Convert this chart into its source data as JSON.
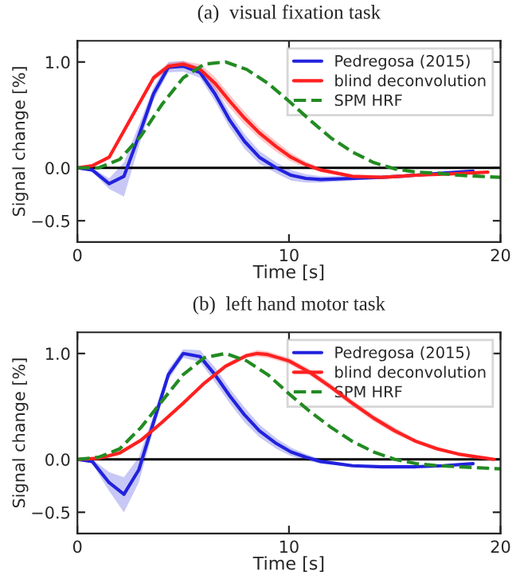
{
  "chart_data": [
    {
      "type": "line",
      "title": "(a)  visual fixation task",
      "xlabel": "Time [s]",
      "ylabel": "Signal change [%]",
      "xlim": [
        0,
        20
      ],
      "ylim": [
        -0.7,
        1.2
      ],
      "xticks": [
        0,
        10,
        20
      ],
      "yticks": [
        {
          "value": -0.5,
          "label": "−0.5"
        },
        {
          "value": 0,
          "label": "0.0"
        },
        {
          "value": 1,
          "label": "1.0"
        }
      ],
      "grid": false,
      "legend": "top right",
      "ref_lines": [
        {
          "axis": "y",
          "value": 0,
          "color": "#000000"
        }
      ],
      "series": [
        {
          "name": "Pedregosa (2015)",
          "color": "#2222dd",
          "line_style": "solid",
          "x": [
            0,
            0.7,
            1.5,
            2.2,
            2.9,
            3.6,
            4.3,
            5.0,
            5.8,
            6.5,
            7.2,
            7.9,
            8.6,
            9.4,
            10.1,
            10.8,
            11.5,
            13,
            14.4,
            16,
            17.3,
            18.7
          ],
          "values": [
            0,
            -0.02,
            -0.15,
            -0.08,
            0.3,
            0.7,
            0.95,
            0.96,
            0.9,
            0.7,
            0.45,
            0.25,
            0.1,
            0.0,
            -0.07,
            -0.1,
            -0.11,
            -0.1,
            -0.09,
            -0.07,
            -0.05,
            -0.03
          ],
          "lower": [
            0,
            -0.04,
            -0.2,
            -0.27,
            0.2,
            0.64,
            0.9,
            0.91,
            0.85,
            0.63,
            0.38,
            0.18,
            0.04,
            -0.05,
            -0.12,
            -0.14,
            -0.14,
            -0.12,
            -0.1,
            -0.08,
            -0.06,
            -0.04
          ],
          "upper": [
            0,
            0.0,
            -0.1,
            0.05,
            0.4,
            0.76,
            1.0,
            1.01,
            0.95,
            0.77,
            0.52,
            0.32,
            0.16,
            0.05,
            -0.02,
            -0.06,
            -0.08,
            -0.08,
            -0.08,
            -0.06,
            -0.04,
            -0.02
          ]
        },
        {
          "name": "blind deconvolution",
          "color": "#ff2020",
          "line_style": "solid",
          "x": [
            0,
            0.7,
            1.5,
            2.2,
            2.9,
            3.6,
            4.3,
            5.0,
            5.8,
            6.5,
            7.2,
            7.9,
            8.6,
            9.4,
            10.1,
            10.8,
            11.5,
            13,
            14.4,
            16,
            17.3,
            19.4
          ],
          "values": [
            0,
            0.02,
            0.1,
            0.35,
            0.6,
            0.85,
            0.96,
            0.98,
            0.93,
            0.8,
            0.63,
            0.47,
            0.33,
            0.2,
            0.1,
            0.03,
            -0.02,
            -0.08,
            -0.09,
            -0.07,
            -0.06,
            -0.04
          ],
          "lower": [
            0,
            0.01,
            0.08,
            0.32,
            0.57,
            0.82,
            0.93,
            0.95,
            0.88,
            0.74,
            0.57,
            0.41,
            0.28,
            0.15,
            0.06,
            0.0,
            -0.04,
            -0.09,
            -0.1,
            -0.08,
            -0.07,
            -0.05
          ],
          "upper": [
            0,
            0.03,
            0.12,
            0.38,
            0.63,
            0.88,
            0.99,
            1.01,
            0.98,
            0.86,
            0.69,
            0.53,
            0.38,
            0.25,
            0.14,
            0.06,
            0.0,
            -0.07,
            -0.08,
            -0.06,
            -0.05,
            -0.03
          ]
        },
        {
          "name": "SPM HRF",
          "color": "#228b22",
          "line_style": "dashed",
          "x": [
            0,
            1,
            2,
            3,
            4,
            5,
            6,
            7,
            8,
            9,
            10,
            11,
            12,
            13,
            14,
            15,
            16,
            17,
            18,
            19,
            20
          ],
          "values": [
            0,
            0.0,
            0.08,
            0.3,
            0.6,
            0.85,
            0.98,
            1.0,
            0.93,
            0.8,
            0.63,
            0.45,
            0.28,
            0.15,
            0.05,
            -0.01,
            -0.04,
            -0.05,
            -0.07,
            -0.08,
            -0.09
          ]
        }
      ]
    },
    {
      "type": "line",
      "title": "(b)  left hand motor task",
      "xlabel": "Time [s]",
      "ylabel": "Signal change [%]",
      "xlim": [
        0,
        20
      ],
      "ylim": [
        -0.7,
        1.2
      ],
      "xticks": [
        0,
        10,
        20
      ],
      "yticks": [
        {
          "value": -0.5,
          "label": "−0.5"
        },
        {
          "value": 0,
          "label": "0.0"
        },
        {
          "value": 1,
          "label": "1.0"
        }
      ],
      "grid": false,
      "legend": "top right",
      "ref_lines": [
        {
          "axis": "y",
          "value": 0,
          "color": "#000000"
        }
      ],
      "series": [
        {
          "name": "Pedregosa (2015)",
          "color": "#2222dd",
          "line_style": "solid",
          "x": [
            0,
            0.7,
            1.5,
            2.2,
            2.9,
            3.6,
            4.3,
            5.0,
            5.8,
            6.5,
            7.2,
            7.9,
            8.6,
            9.4,
            10.1,
            10.8,
            11.5,
            13,
            14.4,
            16,
            17.3,
            18.7
          ],
          "values": [
            0,
            -0.02,
            -0.22,
            -0.33,
            -0.1,
            0.35,
            0.8,
            1.0,
            0.97,
            0.8,
            0.6,
            0.42,
            0.27,
            0.15,
            0.07,
            0.02,
            -0.02,
            -0.06,
            -0.07,
            -0.07,
            -0.06,
            -0.04
          ],
          "lower": [
            0,
            -0.04,
            -0.3,
            -0.5,
            -0.22,
            0.28,
            0.75,
            0.96,
            0.92,
            0.73,
            0.53,
            0.35,
            0.21,
            0.1,
            0.03,
            -0.01,
            -0.04,
            -0.07,
            -0.08,
            -0.08,
            -0.07,
            -0.05
          ],
          "upper": [
            0,
            0.0,
            -0.12,
            -0.17,
            0.02,
            0.42,
            0.85,
            1.04,
            1.03,
            0.87,
            0.67,
            0.49,
            0.33,
            0.2,
            0.11,
            0.05,
            0.0,
            -0.05,
            -0.06,
            -0.06,
            -0.05,
            -0.03
          ]
        },
        {
          "name": "blind deconvolution",
          "color": "#ff2020",
          "line_style": "solid",
          "x": [
            0,
            1,
            2,
            3,
            4,
            5,
            6,
            7,
            8,
            8.5,
            9,
            10,
            11,
            12,
            13,
            14,
            15,
            16,
            17,
            18,
            19,
            19.7
          ],
          "values": [
            0,
            0.01,
            0.06,
            0.18,
            0.35,
            0.53,
            0.72,
            0.88,
            0.98,
            1.0,
            0.99,
            0.93,
            0.82,
            0.68,
            0.53,
            0.39,
            0.27,
            0.17,
            0.1,
            0.05,
            0.02,
            0.0
          ],
          "lower": [
            0,
            0.0,
            0.04,
            0.16,
            0.33,
            0.51,
            0.7,
            0.86,
            0.96,
            0.97,
            0.96,
            0.9,
            0.79,
            0.65,
            0.5,
            0.36,
            0.24,
            0.15,
            0.08,
            0.04,
            0.01,
            0.0
          ],
          "upper": [
            0,
            0.02,
            0.08,
            0.2,
            0.37,
            0.55,
            0.74,
            0.9,
            1.0,
            1.03,
            1.02,
            0.96,
            0.85,
            0.71,
            0.56,
            0.42,
            0.3,
            0.19,
            0.12,
            0.06,
            0.03,
            0.0
          ]
        },
        {
          "name": "SPM HRF",
          "color": "#228b22",
          "line_style": "dashed",
          "x": [
            0,
            1,
            2,
            3,
            4,
            5,
            6,
            7,
            8,
            9,
            10,
            11,
            12,
            13,
            14,
            15,
            16,
            17,
            18,
            19,
            20
          ],
          "values": [
            0,
            0.02,
            0.1,
            0.3,
            0.55,
            0.8,
            0.96,
            1.0,
            0.93,
            0.8,
            0.62,
            0.45,
            0.3,
            0.17,
            0.07,
            0.0,
            -0.04,
            -0.06,
            -0.07,
            -0.08,
            -0.09
          ]
        }
      ]
    }
  ]
}
